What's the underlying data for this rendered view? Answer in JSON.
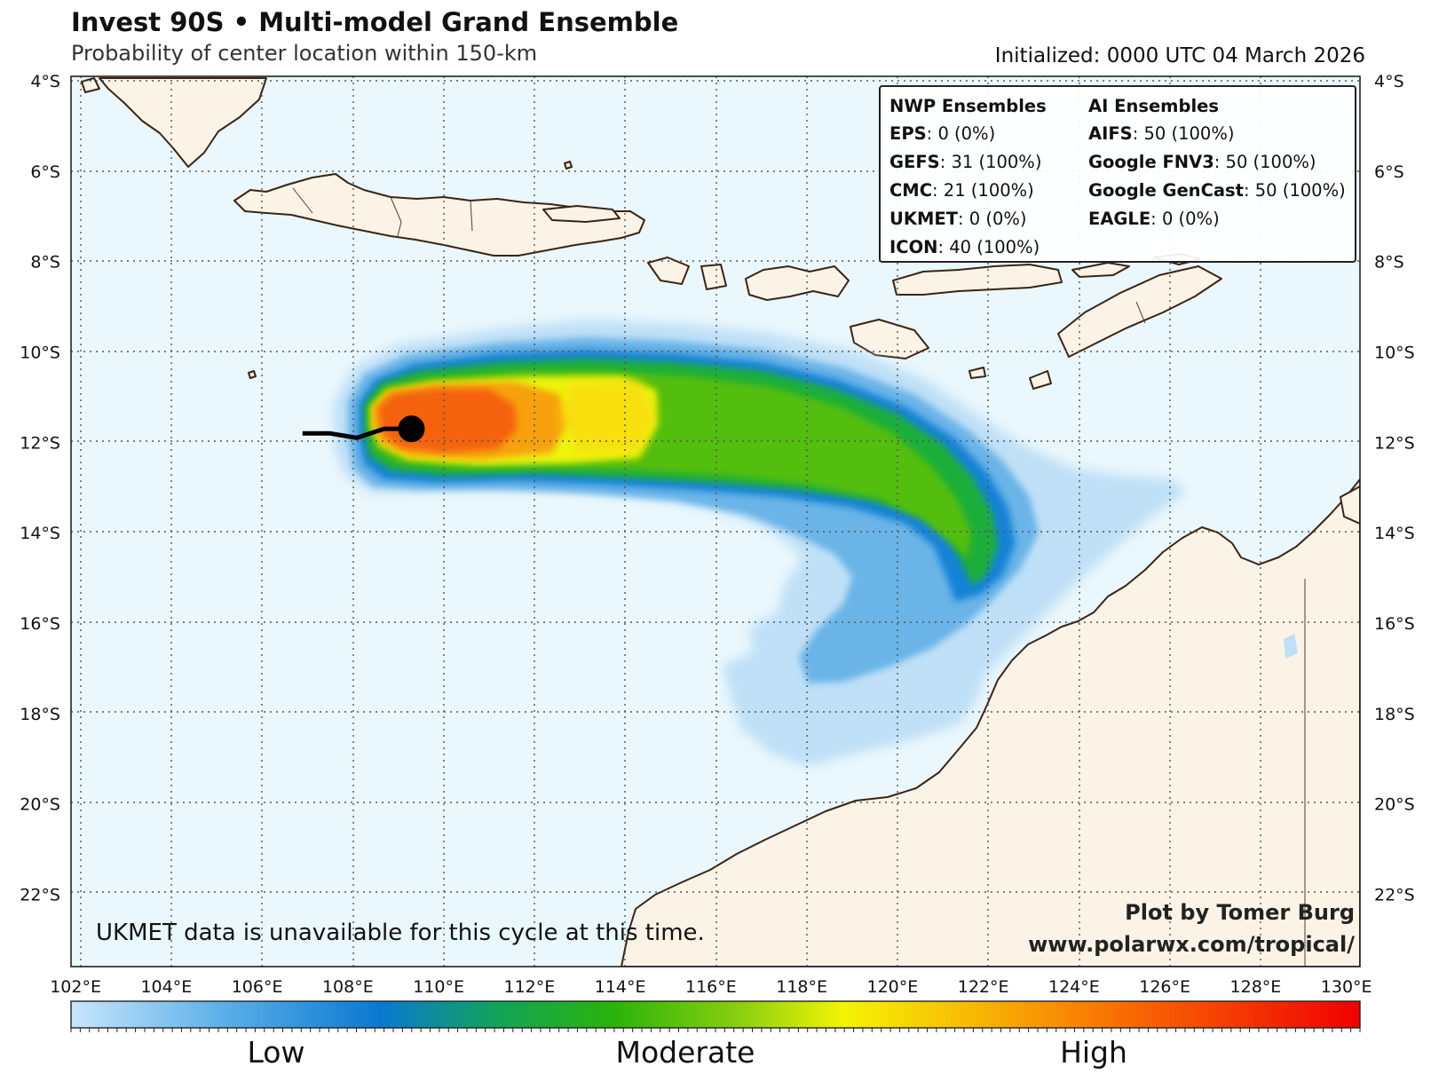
{
  "header": {
    "title": "Invest 90S • Multi-model Grand Ensemble",
    "subtitle": "Probability of center location within 150-km",
    "initialized": "Initialized: 0000 UTC 04 March 2026"
  },
  "legend": {
    "nwp_header": "NWP Ensembles",
    "ai_header": "AI Ensembles",
    "nwp": [
      {
        "name": "EPS",
        "value": ": 0 (0%)"
      },
      {
        "name": "GEFS",
        "value": ": 31 (100%)"
      },
      {
        "name": "CMC",
        "value": ": 21 (100%)"
      },
      {
        "name": "UKMET",
        "value": ": 0 (0%)"
      },
      {
        "name": "ICON",
        "value": ": 40 (100%)"
      }
    ],
    "ai": [
      {
        "name": "AIFS",
        "value": ": 50 (100%)"
      },
      {
        "name": "Google FNV3",
        "value": ": 50 (100%)"
      },
      {
        "name": "Google GenCast",
        "value": ": 50 (100%)"
      },
      {
        "name": "EAGLE",
        "value": ": 0 (0%)"
      }
    ]
  },
  "note": "UKMET data is unavailable for this cycle at this time.",
  "credit": {
    "line1": "Plot by Tomer Burg",
    "line2": "www.polarwx.com/tropical/"
  },
  "axes": {
    "lon_labels": [
      "102°E",
      "104°E",
      "106°E",
      "108°E",
      "110°E",
      "112°E",
      "114°E",
      "116°E",
      "118°E",
      "120°E",
      "122°E",
      "124°E",
      "126°E",
      "128°E",
      "130°E"
    ],
    "lat_labels": [
      "4°S",
      "6°S",
      "8°S",
      "10°S",
      "12°S",
      "14°S",
      "16°S",
      "18°S",
      "20°S",
      "22°S"
    ],
    "lon_range": [
      101.9,
      130.3
    ],
    "lat_range": [
      -23.6,
      -3.9
    ]
  },
  "colorbar": {
    "labels": [
      "Low",
      "Moderate",
      "High"
    ],
    "colors": [
      "#c8e6fb",
      "#5aaee8",
      "#0a78d2",
      "#13a35a",
      "#2ab30a",
      "#8ccf10",
      "#f4f404",
      "#f8b804",
      "#f86a04",
      "#f00000"
    ]
  },
  "track": {
    "lons": [
      107.0,
      107.6,
      108.2,
      108.8,
      109.4
    ],
    "lats": [
      -11.8,
      -11.8,
      -11.9,
      -11.7,
      -11.7
    ],
    "current_position": {
      "lon": 109.4,
      "lat": -11.7
    }
  },
  "colors": {
    "ocean": "#eaf7fc",
    "land": "#fbf3e6",
    "coast": "#3a2416",
    "track": "#000000"
  }
}
